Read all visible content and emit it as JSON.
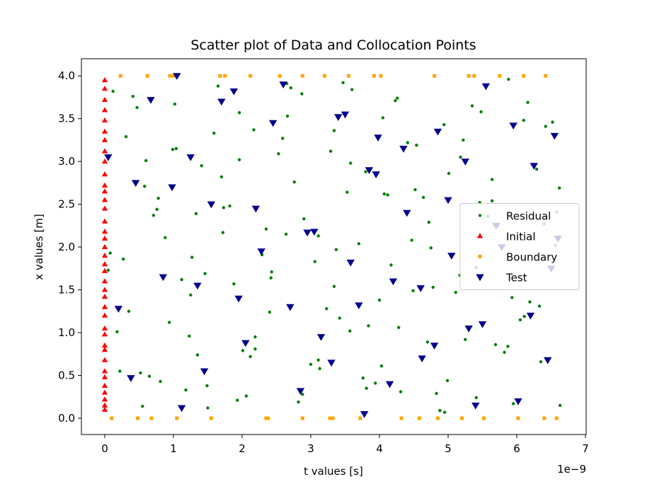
{
  "chart_data": {
    "type": "scatter",
    "title": "Scatter plot of Data and Collocation Points",
    "xlabel": "t values [s]",
    "ylabel": "x values [m]",
    "x_offset_text": "1e−9",
    "xlim": [
      -0.34,
      7.01
    ],
    "ylim": [
      -0.19,
      4.2
    ],
    "xticks": [
      0,
      1,
      2,
      3,
      4,
      5,
      6,
      7
    ],
    "yticks": [
      {
        "value": 0,
        "label": "0.0"
      },
      {
        "value": 0.5,
        "label": "0.5"
      },
      {
        "value": 1,
        "label": "1.0"
      },
      {
        "value": 1.5,
        "label": "1.5"
      },
      {
        "value": 2,
        "label": "2.0"
      },
      {
        "value": 2.5,
        "label": "2.5"
      },
      {
        "value": 3,
        "label": "3.0"
      },
      {
        "value": 3.5,
        "label": "3.5"
      },
      {
        "value": 4,
        "label": "4.0"
      }
    ],
    "legend": "center right",
    "series": [
      {
        "name": "Residual",
        "color": "#008000",
        "marker": "o",
        "x": [
          0.12,
          0.35,
          0.58,
          0.81,
          1.04,
          1.27,
          1.5,
          1.73,
          1.96,
          2.19,
          2.42,
          2.65,
          2.88,
          3.11,
          3.34,
          3.57,
          3.8,
          4.03,
          4.26,
          4.49,
          4.72,
          4.95,
          5.18,
          5.41,
          5.64,
          5.87,
          6.1,
          6.33,
          6.56,
          0.22,
          0.47,
          0.71,
          0.94,
          1.18,
          1.41,
          1.65,
          1.88,
          2.12,
          2.35,
          2.59,
          2.82,
          3.06,
          3.29,
          3.53,
          3.76,
          4.0,
          4.23,
          4.47,
          4.7,
          4.94,
          5.17,
          5.41,
          5.64,
          5.88,
          6.11,
          6.35,
          6.58,
          0.08,
          0.31,
          0.55,
          0.78,
          1.02,
          1.25,
          1.49,
          1.72,
          1.96,
          2.19,
          2.43,
          2.66,
          2.9,
          3.13,
          3.37,
          3.6,
          3.84,
          4.07,
          4.31,
          4.54,
          4.78,
          5.01,
          5.25,
          5.48,
          5.72,
          5.95,
          6.19,
          6.42,
          6.62,
          0.18,
          0.41,
          0.65,
          0.88,
          1.12,
          1.35,
          1.59,
          1.82,
          2.06,
          2.29,
          2.53,
          2.76,
          3.0,
          3.23,
          3.47,
          3.7,
          3.94,
          4.17,
          4.41,
          4.64,
          4.88,
          5.11,
          5.35,
          5.58,
          5.82,
          6.05,
          6.29,
          6.52,
          0.27,
          0.52,
          0.76,
          0.99,
          1.23,
          1.46,
          1.7,
          1.93,
          2.17,
          2.4,
          2.64,
          2.87,
          3.11,
          3.34,
          3.58,
          3.81,
          4.05,
          4.28,
          4.52,
          4.75,
          4.99,
          5.22,
          5.46,
          5.69,
          5.93,
          6.16,
          6.4,
          6.63,
          0.05,
          0.6,
          1.33,
          2.01,
          2.71,
          3.42,
          4.12,
          4.83
        ],
        "y": [
          3.82,
          1.25,
          2.71,
          0.43,
          3.15,
          1.88,
          0.12,
          2.46,
          3.57,
          0.95,
          1.64,
          3.91,
          0.28,
          2.13,
          3.36,
          1.02,
          2.88,
          0.61,
          3.74,
          1.49,
          2.29,
          0.07,
          3.05,
          1.76,
          2.54,
          0.84,
          3.48,
          1.31,
          2.02,
          0.55,
          3.63,
          2.37,
          1.12,
          0.33,
          2.95,
          3.88,
          1.57,
          0.72,
          2.21,
          3.27,
          0.19,
          1.83,
          3.12,
          2.64,
          0.47,
          1.38,
          3.71,
          2.08,
          0.89,
          3.43,
          1.67,
          0.24,
          2.79,
          3.96,
          1.19,
          0.66,
          2.41,
          1.93,
          3.29,
          0.14,
          2.57,
          3.67,
          1.44,
          0.38,
          2.17,
          3.02,
          0.81,
          1.71,
          3.53,
          2.33,
          0.58,
          1.97,
          3.84,
          1.08,
          2.62,
          0.31,
          3.19,
          1.53,
          2.86,
          0.92,
          3.58,
          2.25,
          0.17,
          1.36,
          3.41,
          2.69,
          1.01,
          3.76,
          0.49,
          2.11,
          1.62,
          0.74,
          3.33,
          2.48,
          0.26,
          1.91,
          3.09,
          2.76,
          0.63,
          1.28,
          3.92,
          2.04,
          0.41,
          1.79,
          3.22,
          2.58,
          0.09,
          1.47,
          3.65,
          2.36,
          0.77,
          1.15,
          2.91,
          3.46,
          1.86,
          0.53,
          2.44,
          3.14,
          0.96,
          1.69,
          2.82,
          0.21,
          3.37,
          1.24,
          2.15,
          3.79,
          0.68,
          1.54,
          2.98,
          0.35,
          3.51,
          1.06,
          2.67,
          1.99,
          0.44,
          3.25,
          2.52,
          0.86,
          1.41,
          3.69,
          2.27,
          0.15,
          1.73,
          3.01,
          2.39,
          0.79,
          3.86,
          1.17,
          2.61,
          0.29
        ]
      },
      {
        "name": "Initial",
        "color": "#ff0000",
        "marker": "^",
        "x": [
          0,
          0,
          0,
          0,
          0,
          0,
          0,
          0,
          0,
          0,
          0,
          0,
          0,
          0,
          0,
          0,
          0,
          0,
          0,
          0,
          0,
          0,
          0,
          0,
          0,
          0,
          0,
          0,
          0,
          0,
          0,
          0,
          0,
          0,
          0,
          0,
          0,
          0
        ],
        "y": [
          0.1,
          0.15,
          0.22,
          0.3,
          0.38,
          0.48,
          0.55,
          0.68,
          0.8,
          0.85,
          0.98,
          1.05,
          1.2,
          1.3,
          1.42,
          1.5,
          1.6,
          1.72,
          1.8,
          1.9,
          2.0,
          2.1,
          2.18,
          2.3,
          2.45,
          2.55,
          2.65,
          2.72,
          2.85,
          3.0,
          3.12,
          3.25,
          3.35,
          3.48,
          3.6,
          3.72,
          3.85,
          3.95
        ]
      },
      {
        "name": "Boundary",
        "color": "#ffa500",
        "marker": "s",
        "x": [
          0.23,
          0.62,
          0.95,
          1.0,
          1.68,
          1.75,
          2.12,
          2.55,
          2.88,
          3.2,
          3.55,
          3.92,
          4.02,
          4.8,
          5.3,
          5.38,
          5.75,
          6.1,
          6.42,
          0.1,
          0.48,
          0.68,
          1.05,
          1.55,
          2.35,
          2.38,
          2.88,
          3.28,
          3.32,
          3.72,
          4.32,
          4.58,
          4.85,
          5.2,
          5.52,
          6.02,
          6.4,
          6.58
        ],
        "y": [
          4,
          4,
          4,
          4,
          4,
          4,
          4,
          4,
          4,
          4,
          4,
          4,
          4,
          4,
          4,
          4,
          4,
          4,
          4,
          0,
          0,
          0,
          0,
          0,
          0,
          0,
          0,
          0,
          0,
          0,
          0,
          0,
          0,
          0,
          0,
          0,
          0,
          0
        ]
      },
      {
        "name": "Test",
        "color": "#00008b",
        "marker": "v",
        "x": [
          0.05,
          0.38,
          0.67,
          0.98,
          1.12,
          1.35,
          1.55,
          1.88,
          2.05,
          2.28,
          2.45,
          2.7,
          2.95,
          3.15,
          3.4,
          3.58,
          3.78,
          3.98,
          4.2,
          4.4,
          4.62,
          4.85,
          5.05,
          5.3,
          5.55,
          5.78,
          6.02,
          6.25,
          6.5,
          6.55,
          0.2,
          0.45,
          0.85,
          1.05,
          1.45,
          1.7,
          1.95,
          2.2,
          2.6,
          2.85,
          3.05,
          3.3,
          3.5,
          3.7,
          3.95,
          4.15,
          4.35,
          4.6,
          4.8,
          5.0,
          5.25,
          5.5,
          5.7,
          5.95,
          6.2,
          6.45,
          6.6,
          1.25,
          3.85,
          5.4
        ],
        "y": [
          3.05,
          0.47,
          3.72,
          2.7,
          0.12,
          1.55,
          2.5,
          3.82,
          0.88,
          1.95,
          3.45,
          1.3,
          2.17,
          0.95,
          3.52,
          1.82,
          0.05,
          3.28,
          1.6,
          2.4,
          0.7,
          3.35,
          1.9,
          1.05,
          3.88,
          2.0,
          0.2,
          2.95,
          1.75,
          3.3,
          1.28,
          2.75,
          1.65,
          4.0,
          0.55,
          3.7,
          1.4,
          2.45,
          3.9,
          0.32,
          2.18,
          0.65,
          3.55,
          1.32,
          2.85,
          0.4,
          3.15,
          1.52,
          0.85,
          2.55,
          3.0,
          1.1,
          2.25,
          3.42,
          1.2,
          0.68,
          2.1,
          3.05,
          2.9,
          0.15
        ]
      }
    ]
  }
}
